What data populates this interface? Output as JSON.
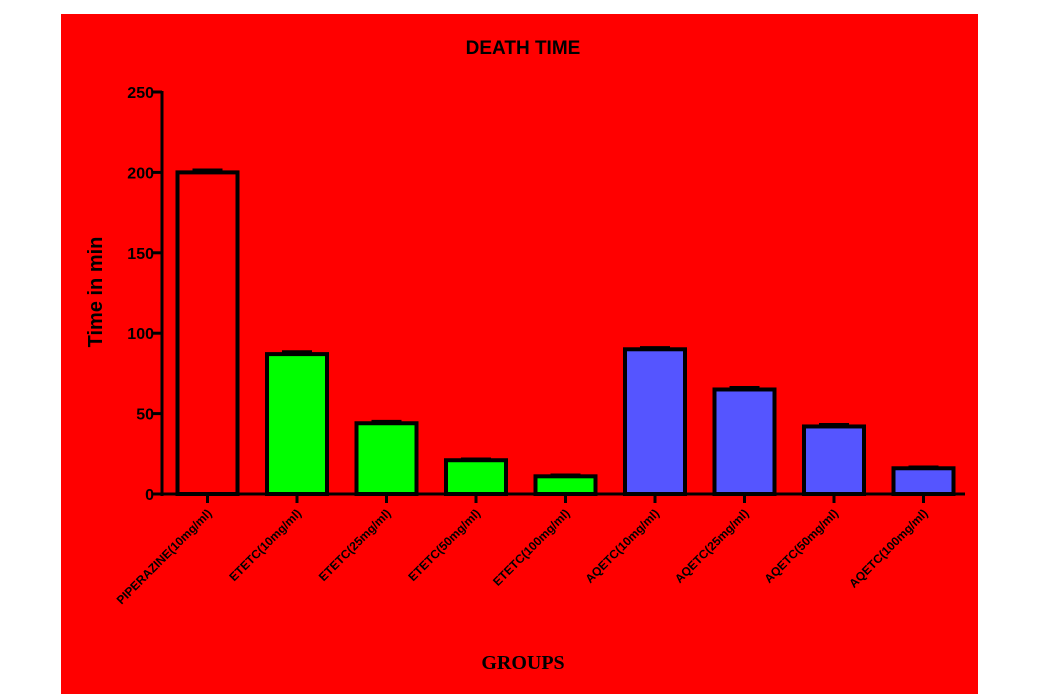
{
  "chart_data": {
    "type": "bar",
    "title": "DEATH TIME",
    "xlabel": "GROUPS",
    "ylabel": "Time in min",
    "ylim": [
      0,
      250
    ],
    "yticks": [
      0,
      50,
      100,
      150,
      200,
      250
    ],
    "categories": [
      "PIPERAZINE(10mg/ml)",
      "ETETC(10mg/ml)",
      "ETETC(25mg/ml)",
      "ETETC(50mg/ml)",
      "ETETC(100mg/ml)",
      "AQETC(10mg/ml)",
      "AQETC(25mg/ml)",
      "AQETC(50mg/ml)",
      "AQETC(100mg/ml)"
    ],
    "values": [
      200,
      87,
      44,
      21,
      11,
      90,
      65,
      42,
      16
    ],
    "errors": [
      1.5,
      1.5,
      1.2,
      0.8,
      0.8,
      1.0,
      1.2,
      1.2,
      0.8
    ],
    "bar_colors": [
      "#ff0000",
      "#00ff00",
      "#00ff00",
      "#00ff00",
      "#00ff00",
      "#5555ff",
      "#5555ff",
      "#5555ff",
      "#5555ff"
    ],
    "background_color": "#ff0000",
    "grid": false
  }
}
